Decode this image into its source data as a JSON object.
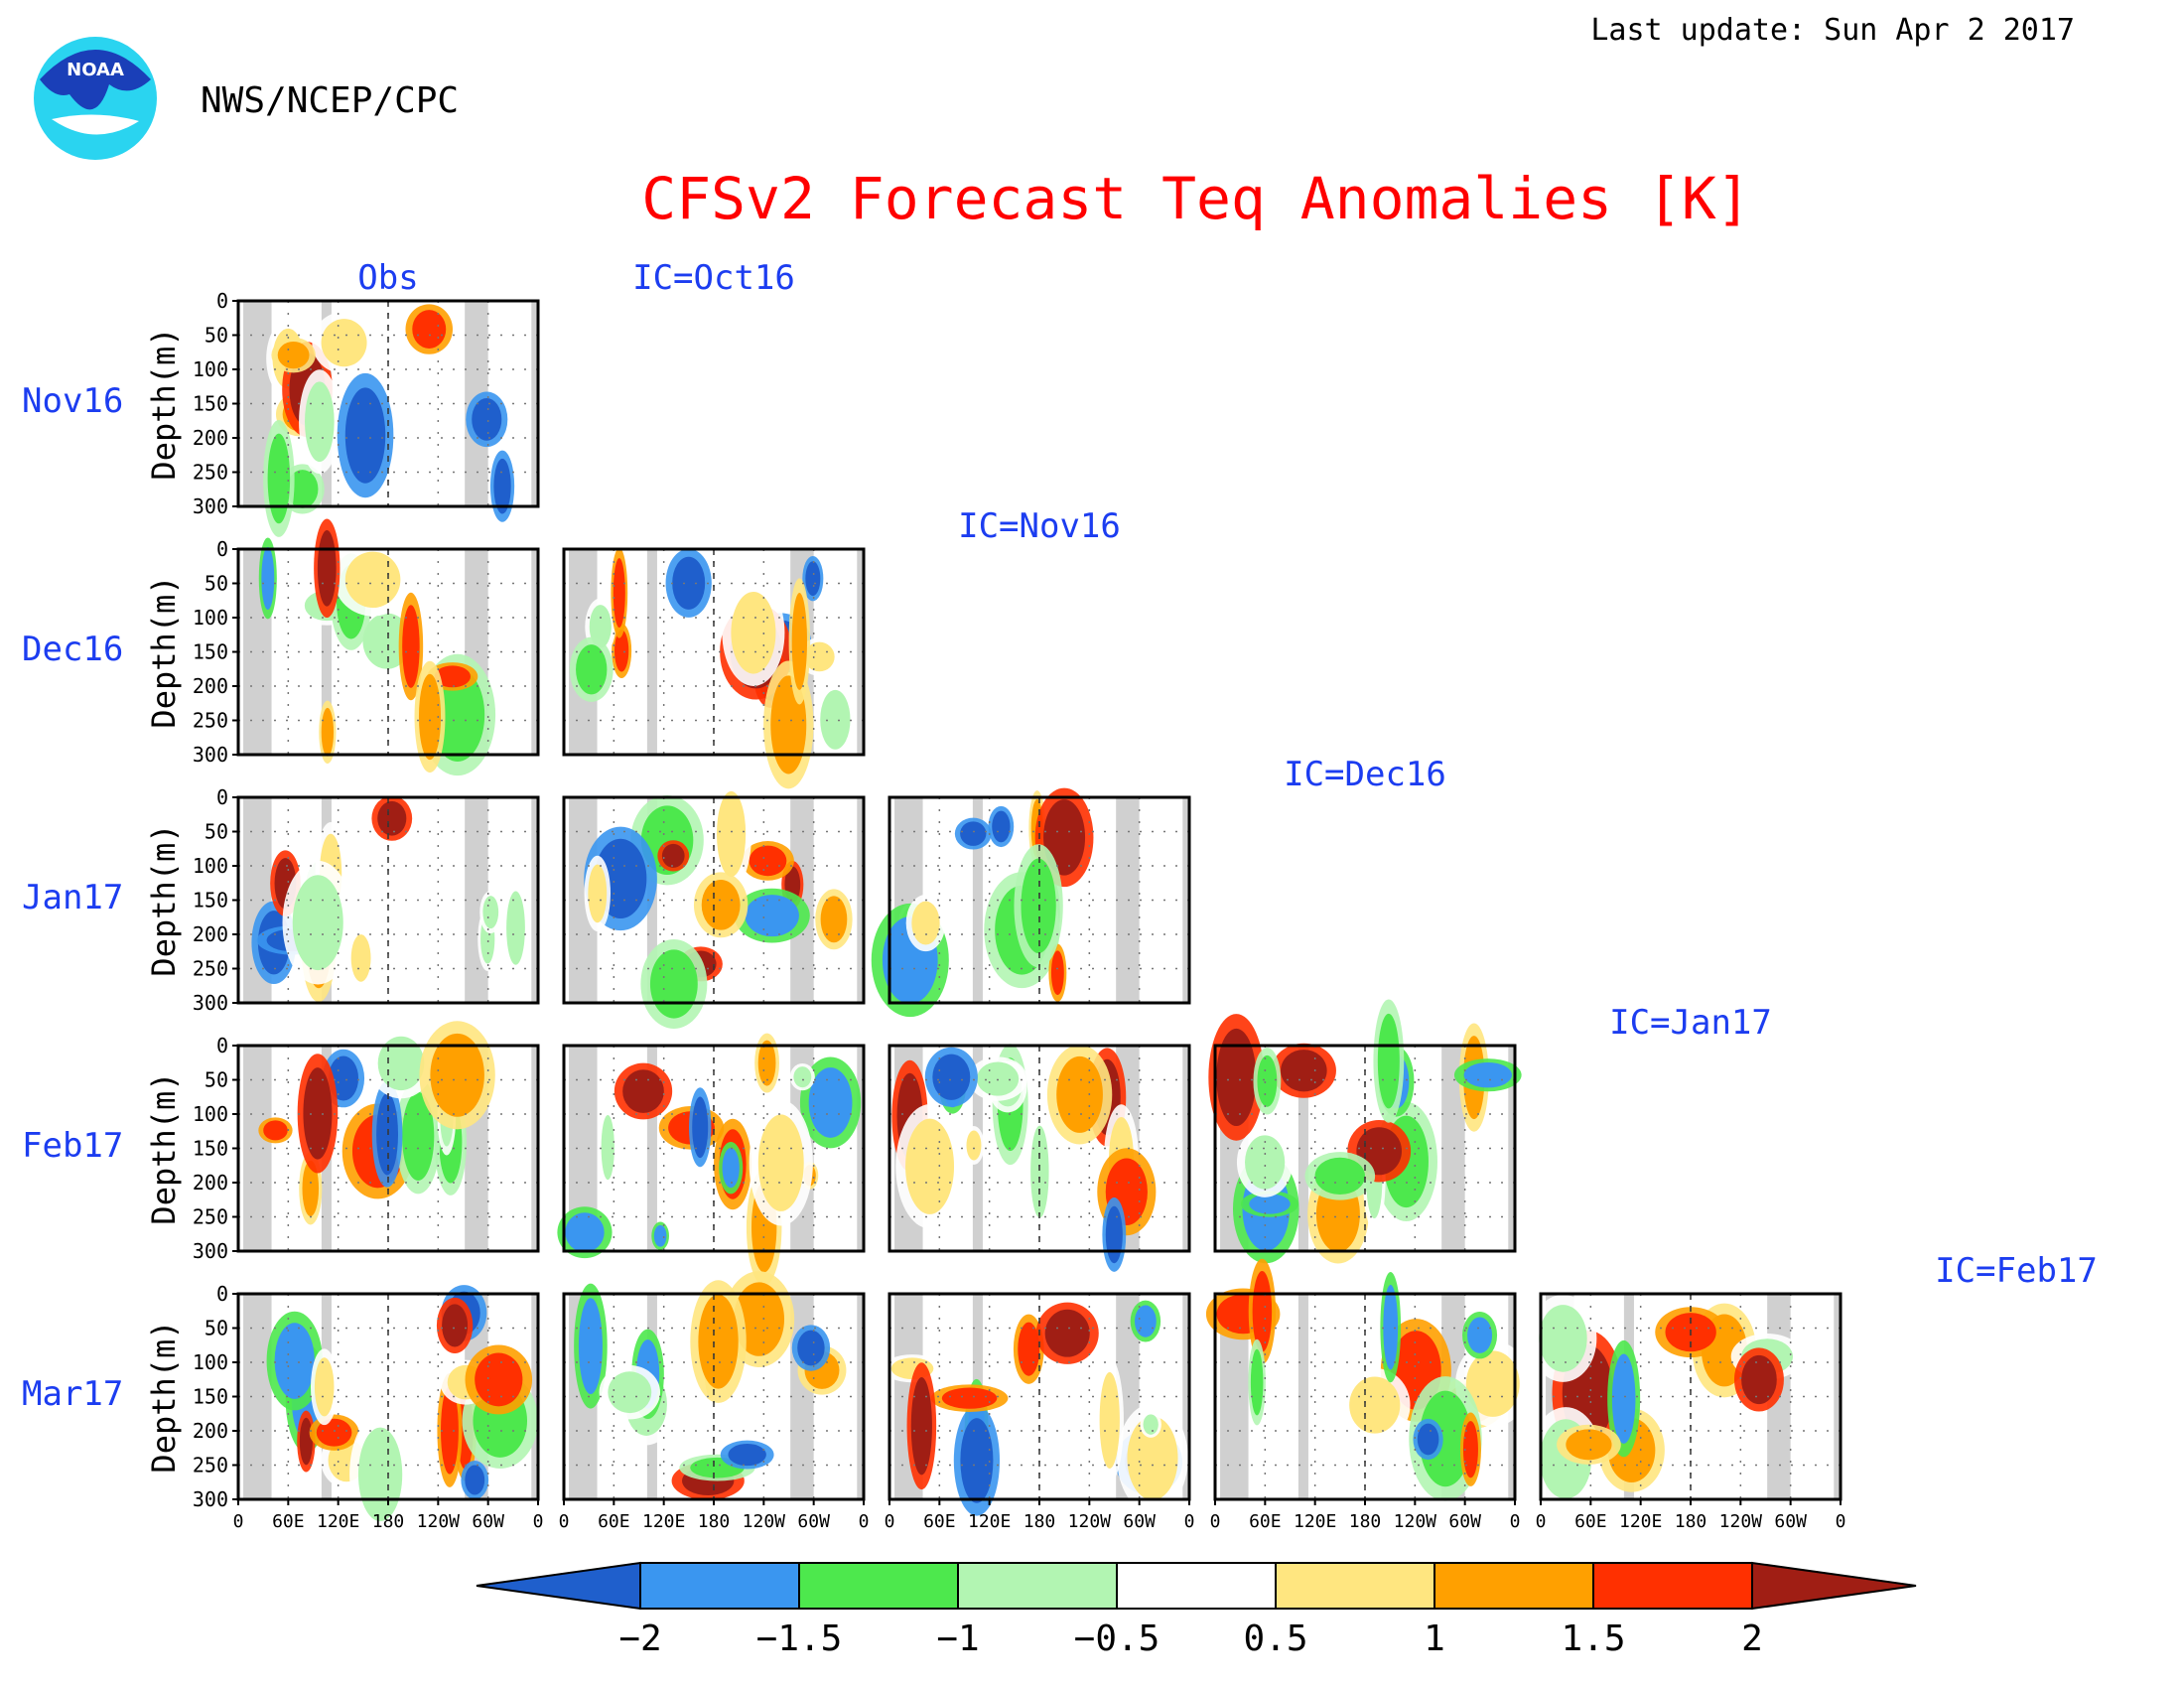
{
  "header": {
    "last_update": "Last update: Sun Apr  2 2017",
    "org": "NWS/NCEP/CPC",
    "logo_text": "NOAA"
  },
  "chart_data": {
    "type": "heatmap",
    "title": "CFSv2 Forecast Teq Anomalies [K]",
    "ylabel": "Depth(m)",
    "y_ticks": [
      "0",
      "50",
      "100",
      "150",
      "200",
      "250",
      "300"
    ],
    "ylim": [
      300,
      0
    ],
    "x_ticks": [
      "0",
      "60E",
      "120E",
      "180",
      "120W",
      "60W",
      "0"
    ],
    "xlim": [
      0,
      360
    ],
    "rows": [
      "Nov16",
      "Dec16",
      "Jan17",
      "Feb17",
      "Mar17"
    ],
    "columns": [
      "Obs",
      "IC=Oct16",
      "IC=Nov16",
      "IC=Dec16",
      "IC=Jan17",
      "IC=Feb17"
    ],
    "colorbar": {
      "labels": [
        "−2",
        "−1.5",
        "−1",
        "−0.5",
        "0.5",
        "1",
        "1.5",
        "2"
      ],
      "colors": [
        "#1f5fcc",
        "#3a96f0",
        "#4de84d",
        "#b2f5b2",
        "#ffffff",
        "#ffe680",
        "#ffa000",
        "#ff3000",
        "#a01e14"
      ]
    },
    "land_mask_lon": [
      [
        6,
        40
      ],
      [
        100,
        112
      ],
      [
        272,
        300
      ],
      [
        352,
        360
      ]
    ]
  },
  "colors": {
    "title": "#ff0000",
    "labels": "#1c3df0",
    "text": "#000000",
    "land": "#d0d0d0"
  }
}
